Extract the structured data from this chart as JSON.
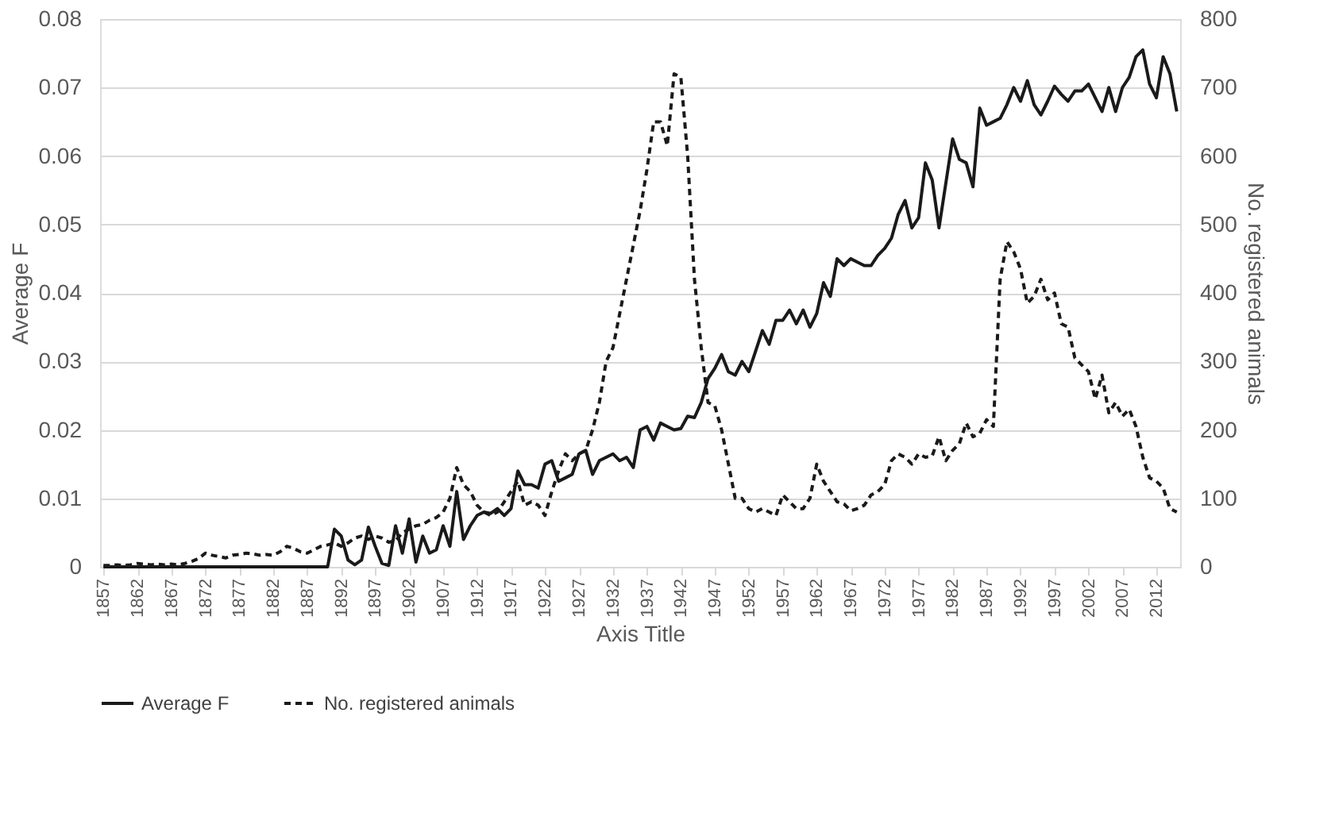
{
  "chart_data": {
    "type": "line",
    "xlabel": "Axis Title",
    "ylabel": "Average F",
    "y2label": "No. registered animals",
    "x": [
      1857,
      1858,
      1859,
      1860,
      1861,
      1862,
      1863,
      1864,
      1865,
      1866,
      1867,
      1868,
      1869,
      1870,
      1871,
      1872,
      1873,
      1874,
      1875,
      1876,
      1877,
      1878,
      1879,
      1880,
      1881,
      1882,
      1883,
      1884,
      1885,
      1886,
      1887,
      1888,
      1889,
      1890,
      1891,
      1892,
      1893,
      1894,
      1895,
      1896,
      1897,
      1898,
      1899,
      1900,
      1901,
      1902,
      1903,
      1904,
      1905,
      1906,
      1907,
      1908,
      1909,
      1910,
      1911,
      1912,
      1913,
      1914,
      1915,
      1916,
      1917,
      1918,
      1919,
      1920,
      1921,
      1922,
      1923,
      1924,
      1925,
      1926,
      1927,
      1928,
      1929,
      1930,
      1931,
      1932,
      1933,
      1934,
      1935,
      1936,
      1937,
      1938,
      1939,
      1940,
      1941,
      1942,
      1943,
      1944,
      1945,
      1946,
      1947,
      1948,
      1949,
      1950,
      1951,
      1952,
      1953,
      1954,
      1955,
      1956,
      1957,
      1958,
      1959,
      1960,
      1961,
      1962,
      1963,
      1964,
      1965,
      1966,
      1967,
      1968,
      1969,
      1970,
      1971,
      1972,
      1973,
      1974,
      1975,
      1976,
      1977,
      1978,
      1979,
      1980,
      1981,
      1982,
      1983,
      1984,
      1985,
      1986,
      1987,
      1988,
      1989,
      1990,
      1991,
      1992,
      1993,
      1994,
      1995,
      1996,
      1997,
      1998,
      1999,
      2000,
      2001,
      2002,
      2003,
      2004,
      2005,
      2006,
      2007,
      2008,
      2009,
      2010,
      2011,
      2012,
      2013,
      2014,
      2015
    ],
    "xlim": [
      1856.5,
      2015.5
    ],
    "xticks": [
      1857,
      1862,
      1867,
      1872,
      1877,
      1882,
      1887,
      1892,
      1897,
      1902,
      1907,
      1912,
      1917,
      1922,
      1927,
      1932,
      1937,
      1942,
      1947,
      1952,
      1957,
      1962,
      1967,
      1972,
      1977,
      1982,
      1987,
      1992,
      1997,
      2002,
      2007,
      2012
    ],
    "ylim": [
      0,
      0.08
    ],
    "yticks": [
      0,
      0.01,
      0.02,
      0.03,
      0.04,
      0.05,
      0.06,
      0.07,
      0.08
    ],
    "y2lim": [
      0,
      800
    ],
    "y2ticks": [
      0,
      100,
      200,
      300,
      400,
      500,
      600,
      700,
      800
    ],
    "grid": "y",
    "legend": "bottom",
    "marker": "none",
    "series": [
      {
        "name": "Average F",
        "color": "#1a1a1a",
        "line_style": "solid",
        "values": [
          0,
          0,
          0,
          0,
          0,
          0,
          0,
          0,
          0,
          0,
          0,
          0,
          0,
          0,
          0,
          0,
          0,
          0,
          0,
          0,
          0,
          0,
          0,
          0,
          0,
          0,
          0,
          0,
          0,
          0,
          0,
          0,
          0,
          0,
          0.0055,
          0.0045,
          0.001,
          0.0003,
          0.001,
          0.0058,
          0.003,
          0.0005,
          0.0002,
          0.006,
          0.002,
          0.007,
          0.0007,
          0.0045,
          0.002,
          0.0025,
          0.006,
          0.003,
          0.011,
          0.004,
          0.006,
          0.0075,
          0.008,
          0.0078,
          0.0085,
          0.0075,
          0.0085,
          0.014,
          0.012,
          0.012,
          0.0115,
          0.015,
          0.0155,
          0.0125,
          0.013,
          0.0135,
          0.0165,
          0.017,
          0.0135,
          0.0155,
          0.016,
          0.0165,
          0.0155,
          0.016,
          0.0145,
          0.02,
          0.0205,
          0.0185,
          0.021,
          0.0205,
          0.02,
          0.0202,
          0.022,
          0.0218,
          0.024,
          0.0275,
          0.029,
          0.031,
          0.0285,
          0.028,
          0.03,
          0.0285,
          0.0315,
          0.0345,
          0.0325,
          0.036,
          0.036,
          0.0375,
          0.0355,
          0.0375,
          0.035,
          0.037,
          0.0415,
          0.0395,
          0.045,
          0.044,
          0.045,
          0.0445,
          0.044,
          0.044,
          0.0455,
          0.0465,
          0.048,
          0.0515,
          0.0535,
          0.0495,
          0.051,
          0.059,
          0.0565,
          0.0495,
          0.056,
          0.0625,
          0.0595,
          0.059,
          0.0555,
          0.067,
          0.0645,
          0.065,
          0.0655,
          0.0675,
          0.07,
          0.068,
          0.071,
          0.0675,
          0.066,
          0.068,
          0.0702,
          0.069,
          0.068,
          0.0695,
          0.0695,
          0.0705,
          0.0685,
          0.0665,
          0.07,
          0.0665,
          0.07,
          0.0715,
          0.0745,
          0.0755,
          0.0705,
          0.0685,
          0.0745,
          0.072,
          0.0665
        ]
      },
      {
        "name": "No. registered animals",
        "color": "#1a1a1a",
        "line_style": "dashed",
        "axis": "y2",
        "values": [
          2,
          2,
          3,
          2,
          3,
          5,
          4,
          3,
          4,
          3,
          4,
          3,
          5,
          8,
          12,
          20,
          17,
          15,
          13,
          17,
          18,
          20,
          19,
          17,
          18,
          17,
          22,
          30,
          27,
          22,
          20,
          25,
          30,
          32,
          35,
          30,
          35,
          42,
          45,
          40,
          45,
          42,
          36,
          38,
          50,
          55,
          60,
          62,
          68,
          72,
          80,
          100,
          145,
          120,
          110,
          90,
          80,
          75,
          80,
          95,
          110,
          125,
          90,
          95,
          90,
          75,
          110,
          140,
          165,
          155,
          165,
          170,
          200,
          240,
          300,
          320,
          370,
          420,
          470,
          520,
          580,
          650,
          650,
          615,
          720,
          715,
          600,
          420,
          320,
          240,
          235,
          200,
          150,
          100,
          100,
          85,
          80,
          85,
          80,
          75,
          105,
          95,
          85,
          85,
          100,
          150,
          125,
          110,
          95,
          92,
          82,
          85,
          90,
          105,
          110,
          120,
          155,
          165,
          160,
          150,
          165,
          160,
          162,
          190,
          155,
          170,
          180,
          210,
          190,
          195,
          215,
          205,
          420,
          475,
          460,
          435,
          385,
          395,
          420,
          390,
          400,
          355,
          350,
          305,
          295,
          285,
          245,
          280,
          225,
          240,
          220,
          230,
          205,
          160,
          130,
          125,
          115,
          85,
          80
        ]
      }
    ]
  }
}
